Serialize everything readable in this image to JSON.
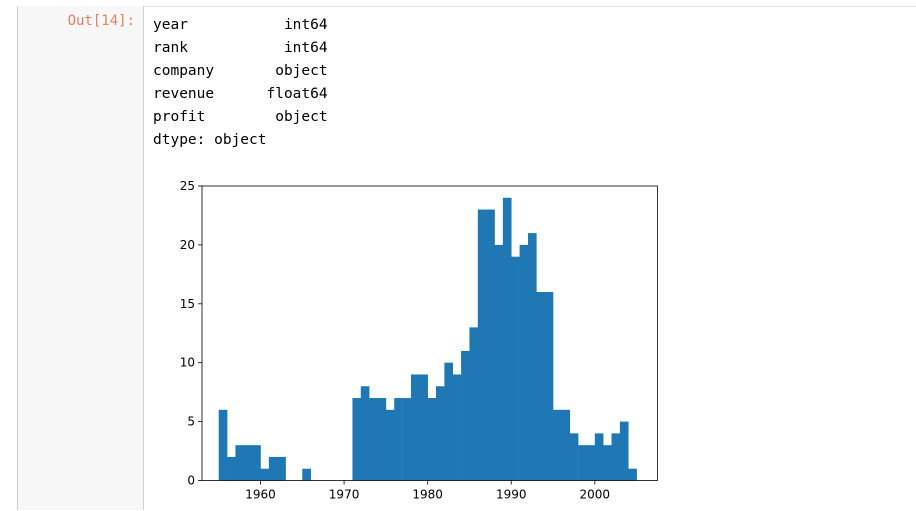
{
  "output_prompt": "Out[14]:",
  "dtype_output": [
    {
      "text": "year           int64"
    },
    {
      "text": "rank           int64"
    },
    {
      "text": "company       object"
    },
    {
      "text": "revenue      float64"
    },
    {
      "text": "profit        object"
    },
    {
      "text": "dtype: object"
    }
  ],
  "chart_data": {
    "type": "bar",
    "title": "",
    "xlabel": "",
    "ylabel": "",
    "xlim": [
      1953.0,
      2007.5
    ],
    "ylim": [
      0,
      25
    ],
    "xticks": [
      1960,
      1970,
      1980,
      1990,
      2000
    ],
    "yticks": [
      0,
      5,
      10,
      15,
      20,
      25
    ],
    "bin_edges": [
      1955,
      1956,
      1957,
      1958,
      1959,
      1960,
      1961,
      1962,
      1963,
      1964,
      1965,
      1966,
      1967,
      1968,
      1969,
      1970,
      1971,
      1972,
      1973,
      1974,
      1975,
      1976,
      1977,
      1978,
      1979,
      1980,
      1981,
      1982,
      1983,
      1984,
      1985,
      1986,
      1987,
      1988,
      1989,
      1990,
      1991,
      1992,
      1993,
      1994,
      1995,
      1996,
      1997,
      1998,
      1999,
      2000,
      2001,
      2002,
      2003,
      2004,
      2005
    ],
    "values": [
      6,
      2,
      3,
      3,
      3,
      1,
      2,
      2,
      0,
      0,
      1,
      0,
      0,
      0,
      0,
      0,
      7,
      8,
      7,
      7,
      6,
      7,
      7,
      9,
      9,
      7,
      8,
      10,
      9,
      11,
      13,
      23,
      23,
      20,
      24,
      19,
      20,
      21,
      16,
      16,
      6,
      6,
      4,
      3,
      3,
      4,
      3,
      4,
      5,
      1
    ],
    "bar_color": "#1f77b4"
  }
}
